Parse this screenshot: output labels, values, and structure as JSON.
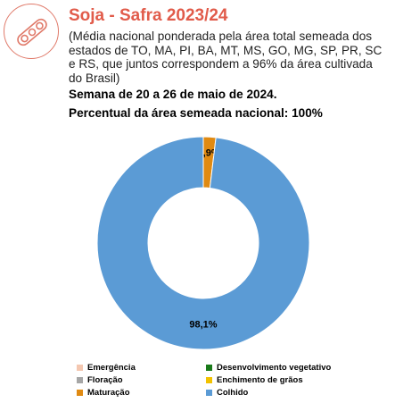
{
  "header": {
    "title": "Soja - Safra 2023/24",
    "description": "(Média nacional ponderada pela área total semeada dos estados de TO, MA, PI, BA, MT, MS, GO, MG, SP, PR, SC e RS, que juntos correspondem a 96% da área cultivada do Brasil)",
    "week": "Semana de 20 a 26 de maio de 2024.",
    "area": "Percentual da área semeada nacional: 100%",
    "icon": "soybean-pod-icon",
    "accent_color": "#e15b4a"
  },
  "chart_data": {
    "type": "pie",
    "donut": true,
    "title": "",
    "start_angle_deg": 0,
    "slices": [
      {
        "label": "Maturação",
        "value": 1.9,
        "display": "1,9%",
        "color": "#e08a12"
      },
      {
        "label": "Colhido",
        "value": 98.1,
        "display": "98,1%",
        "color": "#5b9bd5"
      }
    ],
    "legend": {
      "position": "bottom",
      "items": [
        {
          "label": "Emergência",
          "color": "#f4c7b0"
        },
        {
          "label": "Desenvolvimento vegetativo",
          "color": "#1a7a1a"
        },
        {
          "label": "Floração",
          "color": "#a6a6a6"
        },
        {
          "label": "Enchimento de grãos",
          "color": "#f2c200"
        },
        {
          "label": "Maturação",
          "color": "#e08a12"
        },
        {
          "label": "Colhido",
          "color": "#5b9bd5"
        }
      ]
    }
  }
}
